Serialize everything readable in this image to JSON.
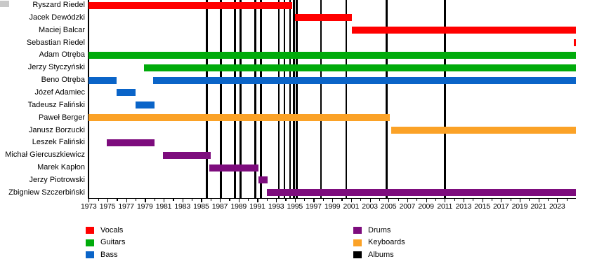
{
  "chart_data": {
    "type": "gantt",
    "description": "Band membership timeline with album release markers",
    "x_axis": {
      "range": [
        1973,
        2025
      ],
      "tick_label_years": [
        1973,
        1975,
        1977,
        1979,
        1981,
        1983,
        1985,
        1987,
        1989,
        1991,
        1993,
        1995,
        1997,
        1999,
        2001,
        2003,
        2005,
        2007,
        2009,
        2011,
        2013,
        2015,
        2017,
        2019,
        2021,
        2023
      ],
      "minor_tick_step": 1
    },
    "colors": {
      "vocals": "#ff0000",
      "guitars": "#00ab0b",
      "bass": "#0a64c8",
      "drums": "#7d0c7d",
      "keyboards": "#fba227",
      "albums": "#000000"
    },
    "members": [
      {
        "name": "Ryszard Riedel",
        "role": "vocals",
        "segments": [
          [
            1973,
            1994.7
          ]
        ]
      },
      {
        "name": "Jacek Dewódzki",
        "role": "vocals",
        "segments": [
          [
            1995.0,
            2001.1
          ]
        ]
      },
      {
        "name": "Maciej Balcar",
        "role": "vocals",
        "segments": [
          [
            2001.1,
            2025
          ]
        ]
      },
      {
        "name": "Sebastian Riedel",
        "role": "vocals",
        "segments": [
          [
            2024.8,
            2025
          ]
        ]
      },
      {
        "name": "Adam Otręba",
        "role": "guitars",
        "segments": [
          [
            1973,
            2025
          ]
        ]
      },
      {
        "name": "Jerzy Styczyński",
        "role": "guitars",
        "segments": [
          [
            1978.9,
            2025
          ]
        ]
      },
      {
        "name": "Beno Otręba",
        "role": "bass",
        "segments": [
          [
            1973,
            1976
          ],
          [
            1979.9,
            2025
          ]
        ]
      },
      {
        "name": "Józef Adamiec",
        "role": "bass",
        "segments": [
          [
            1976,
            1978
          ]
        ]
      },
      {
        "name": "Tadeusz Faliński",
        "role": "bass",
        "segments": [
          [
            1978,
            1980
          ]
        ]
      },
      {
        "name": "Paweł Berger",
        "role": "keyboards",
        "segments": [
          [
            1973,
            2005.1
          ]
        ]
      },
      {
        "name": "Janusz Borzucki",
        "role": "keyboards",
        "segments": [
          [
            2005.3,
            2025
          ]
        ]
      },
      {
        "name": "Leszek Faliński",
        "role": "drums",
        "segments": [
          [
            1974.9,
            1980
          ]
        ]
      },
      {
        "name": "Michał Giercuszkiewicz",
        "role": "drums",
        "segments": [
          [
            1980.9,
            1986
          ]
        ]
      },
      {
        "name": "Marek Kapłon",
        "role": "drums",
        "segments": [
          [
            1985.9,
            1991.1
          ]
        ]
      },
      {
        "name": "Jerzy Piotrowski",
        "role": "drums",
        "segments": [
          [
            1991.1,
            1992.1
          ]
        ]
      },
      {
        "name": "Zbigniew Szczerbiński",
        "role": "drums",
        "segments": [
          [
            1992.0,
            2025
          ]
        ]
      }
    ],
    "album_marker_years": [
      1985.6,
      1987.1,
      1988.6,
      1989.2,
      1990.8,
      1991.4,
      1993.3,
      1993.9,
      1994.5,
      1994.9,
      1995.2,
      1997.8,
      2000.5,
      2004.8,
      2011.0
    ],
    "legend": {
      "left_column": [
        {
          "label": "Vocals",
          "role": "vocals"
        },
        {
          "label": "Guitars",
          "role": "guitars"
        },
        {
          "label": "Bass",
          "role": "bass"
        }
      ],
      "right_column": [
        {
          "label": "Drums",
          "role": "drums"
        },
        {
          "label": "Keyboards",
          "role": "keyboards"
        },
        {
          "label": "Albums",
          "role": "albums"
        }
      ]
    }
  }
}
